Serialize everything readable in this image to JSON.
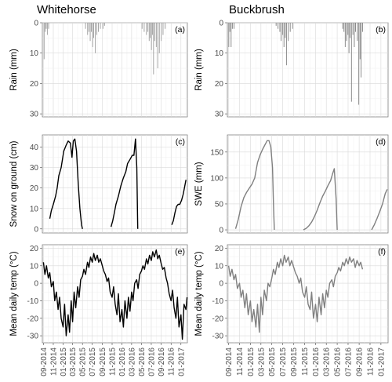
{
  "chart_data": {
    "columns": [
      "Whitehorse",
      "Buckbrush"
    ],
    "x_tick_labels": [
      "09-2014",
      "11-2014",
      "01-2015",
      "03-2015",
      "05-2015",
      "07-2015",
      "09-2015",
      "11-2015",
      "01-2016",
      "03-2016",
      "05-2016",
      "07-2016",
      "09-2016",
      "11-2016",
      "01-2017"
    ],
    "x_domain": [
      "2014-08-25",
      "2017-02-10"
    ],
    "panels": [
      {
        "id": "a",
        "column": "Whitehorse",
        "row": 0,
        "letter": "(a)",
        "type": "bar",
        "ylabel": "Rain (mm)",
        "y_reversed": true,
        "ylim": [
          0,
          31
        ],
        "yticks": [
          0,
          10,
          20,
          30
        ],
        "color": "#9a9a9a",
        "x": [
          "2014-09-05",
          "2014-09-12",
          "2014-09-18",
          "2014-09-25",
          "2014-10-03",
          "2015-05-20",
          "2015-06-02",
          "2015-06-10",
          "2015-06-18",
          "2015-06-25",
          "2015-07-03",
          "2015-07-10",
          "2015-07-20",
          "2015-07-28",
          "2015-08-08",
          "2015-08-20",
          "2015-09-05",
          "2015-09-15",
          "2016-05-05",
          "2016-05-18",
          "2016-06-01",
          "2016-06-10",
          "2016-06-18",
          "2016-06-25",
          "2016-07-02",
          "2016-07-08",
          "2016-07-15",
          "2016-07-22",
          "2016-08-01",
          "2016-08-10",
          "2016-08-20",
          "2016-09-01",
          "2016-09-12",
          "2016-09-25"
        ],
        "values": [
          12,
          3,
          2,
          4,
          2,
          2,
          4,
          3,
          6,
          3,
          8,
          5,
          10,
          4,
          3,
          2,
          2,
          1,
          2,
          3,
          4,
          3,
          6,
          5,
          9,
          4,
          17,
          6,
          8,
          15,
          10,
          6,
          4,
          2
        ]
      },
      {
        "id": "b",
        "column": "Buckbrush",
        "row": 0,
        "letter": "(b)",
        "type": "bar",
        "ylabel": "Rain (mm)",
        "y_reversed": true,
        "ylim": [
          0,
          31
        ],
        "yticks": [
          0,
          10,
          20,
          30
        ],
        "color": "#7f7f7f",
        "x": [
          "2014-09-02",
          "2014-09-08",
          "2014-09-15",
          "2014-09-22",
          "2014-10-01",
          "2015-05-25",
          "2015-06-05",
          "2015-06-15",
          "2015-06-22",
          "2015-07-01",
          "2015-07-08",
          "2015-07-15",
          "2015-07-22",
          "2015-08-01",
          "2015-08-12",
          "2015-08-25",
          "2016-06-01",
          "2016-06-08",
          "2016-06-15",
          "2016-06-22",
          "2016-06-30",
          "2016-07-06",
          "2016-07-12",
          "2016-07-20",
          "2016-07-28",
          "2016-08-05",
          "2016-08-12",
          "2016-08-22",
          "2016-08-30",
          "2016-09-06",
          "2016-09-12",
          "2016-09-20"
        ],
        "values": [
          8,
          3,
          8,
          2,
          2,
          1,
          2,
          3,
          6,
          4,
          8,
          5,
          14,
          6,
          3,
          2,
          2,
          3,
          8,
          6,
          4,
          10,
          5,
          26,
          4,
          8,
          3,
          6,
          27,
          12,
          18,
          3
        ]
      },
      {
        "id": "c",
        "column": "Whitehorse",
        "row": 1,
        "letter": "(c)",
        "type": "line",
        "ylabel": "Snow on ground (cm)",
        "ylim": [
          -2,
          46
        ],
        "yticks": [
          0,
          10,
          20,
          30,
          40
        ],
        "color": "#000000",
        "segments": [
          {
            "x": [
              "2014-10-10",
              "2014-10-20",
              "2014-11-01",
              "2014-11-15",
              "2014-11-25",
              "2014-12-05",
              "2014-12-20",
              "2015-01-05",
              "2015-01-20",
              "2015-02-01",
              "2015-02-15",
              "2015-02-25",
              "2015-03-05",
              "2015-03-15",
              "2015-03-25",
              "2015-04-05",
              "2015-04-15",
              "2015-04-25",
              "2015-05-01"
            ],
            "values": [
              5,
              9,
              12,
              16,
              20,
              26,
              30,
              38,
              41,
              43,
              42,
              35,
              43,
              44,
              38,
              22,
              10,
              2,
              0
            ]
          },
          {
            "x": [
              "2015-10-25",
              "2015-11-05",
              "2015-11-15",
              "2015-11-25",
              "2015-12-10",
              "2015-12-25",
              "2016-01-10",
              "2016-01-25",
              "2016-02-05",
              "2016-02-20",
              "2016-03-05",
              "2016-03-15",
              "2016-03-25",
              "2016-04-02",
              "2016-04-08"
            ],
            "values": [
              1,
              4,
              8,
              12,
              16,
              21,
              25,
              28,
              32,
              34,
              36,
              36,
              44,
              30,
              0
            ]
          },
          {
            "x": [
              "2016-11-05",
              "2016-11-15",
              "2016-11-25",
              "2016-12-05",
              "2016-12-15",
              "2016-12-25",
              "2017-01-05",
              "2017-01-15",
              "2017-01-25",
              "2017-02-01"
            ],
            "values": [
              2,
              4,
              8,
              11,
              12,
              12,
              14,
              17,
              21,
              24
            ]
          }
        ]
      },
      {
        "id": "d",
        "column": "Buckbrush",
        "row": 1,
        "letter": "(d)",
        "type": "line",
        "ylabel": "SWE (mm)",
        "ylim": [
          -6,
          183
        ],
        "yticks": [
          0,
          50,
          100,
          150
        ],
        "color": "#808080",
        "segments": [
          {
            "x": [
              "2014-10-10",
              "2014-10-25",
              "2014-11-10",
              "2014-11-25",
              "2014-12-10",
              "2014-12-25",
              "2015-01-10",
              "2015-01-25",
              "2015-02-10",
              "2015-02-25",
              "2015-03-10",
              "2015-03-25",
              "2015-04-05",
              "2015-04-15",
              "2015-04-25",
              "2015-05-05",
              "2015-05-10",
              "2015-05-15"
            ],
            "values": [
              2,
              20,
              45,
              62,
              72,
              80,
              88,
              100,
              130,
              145,
              155,
              165,
              172,
              172,
              160,
              120,
              50,
              0
            ]
          },
          {
            "x": [
              "2015-10-25",
              "2015-11-10",
              "2015-11-25",
              "2015-12-10",
              "2015-12-25",
              "2016-01-10",
              "2016-01-25",
              "2016-02-10",
              "2016-02-25",
              "2016-03-10",
              "2016-03-25",
              "2016-04-05",
              "2016-04-15",
              "2016-04-25",
              "2016-05-01"
            ],
            "values": [
              0,
              3,
              8,
              15,
              25,
              38,
              52,
              65,
              75,
              85,
              95,
              108,
              118,
              60,
              0
            ]
          },
          {
            "x": [
              "2016-11-10",
              "2016-11-25",
              "2016-12-10",
              "2016-12-25",
              "2017-01-10",
              "2017-01-25",
              "2017-02-05"
            ],
            "values": [
              0,
              10,
              22,
              35,
              50,
              70,
              78
            ]
          }
        ]
      },
      {
        "id": "e",
        "column": "Whitehorse",
        "row": 2,
        "letter": "(e)",
        "type": "line",
        "ylabel": "Mean daily temp (°C)",
        "ylim": [
          -34,
          22
        ],
        "yticks": [
          -30,
          -20,
          -10,
          0,
          10,
          20
        ],
        "color": "#000000",
        "segments": [
          {
            "x": [
              "2014-09-01",
              "2014-09-10",
              "2014-09-20",
              "2014-10-01",
              "2014-10-10",
              "2014-10-20",
              "2014-11-01",
              "2014-11-10",
              "2014-11-20",
              "2014-12-01",
              "2014-12-10",
              "2014-12-20",
              "2015-01-01",
              "2015-01-10",
              "2015-01-20",
              "2015-02-01",
              "2015-02-10",
              "2015-02-20",
              "2015-03-01",
              "2015-03-10",
              "2015-03-20",
              "2015-04-01",
              "2015-04-10",
              "2015-04-20",
              "2015-05-01",
              "2015-05-10",
              "2015-05-20",
              "2015-06-01",
              "2015-06-10",
              "2015-06-20",
              "2015-07-01",
              "2015-07-10",
              "2015-07-20",
              "2015-08-01",
              "2015-08-10",
              "2015-08-20",
              "2015-09-01",
              "2015-09-10",
              "2015-09-20",
              "2015-10-01",
              "2015-10-10",
              "2015-10-20",
              "2015-11-01",
              "2015-11-10",
              "2015-11-20",
              "2015-12-01",
              "2015-12-10",
              "2015-12-20",
              "2016-01-01",
              "2016-01-10",
              "2016-01-20",
              "2016-02-01",
              "2016-02-10",
              "2016-02-20",
              "2016-03-01",
              "2016-03-10",
              "2016-03-20",
              "2016-04-01",
              "2016-04-10",
              "2016-04-20",
              "2016-05-01",
              "2016-05-10",
              "2016-05-20",
              "2016-06-01",
              "2016-06-10",
              "2016-06-20",
              "2016-07-01",
              "2016-07-10",
              "2016-07-20",
              "2016-08-01",
              "2016-08-10",
              "2016-08-20",
              "2016-09-01",
              "2016-09-10",
              "2016-09-20",
              "2016-10-01",
              "2016-10-10",
              "2016-10-20",
              "2016-11-01",
              "2016-11-10",
              "2016-11-20",
              "2016-12-01",
              "2016-12-10",
              "2016-12-20",
              "2017-01-01",
              "2017-01-10",
              "2017-01-20",
              "2017-02-01",
              "2017-02-08"
            ],
            "values": [
              12,
              5,
              10,
              3,
              6,
              -2,
              1,
              -10,
              -5,
              -15,
              -8,
              -20,
              -25,
              -12,
              -30,
              -18,
              -28,
              -10,
              -22,
              -5,
              -14,
              -2,
              -8,
              2,
              4,
              8,
              5,
              12,
              9,
              15,
              12,
              17,
              13,
              16,
              12,
              14,
              10,
              7,
              5,
              1,
              3,
              -5,
              -8,
              -2,
              -12,
              -18,
              -6,
              -22,
              -15,
              -25,
              -10,
              -20,
              -8,
              -16,
              -5,
              -10,
              0,
              2,
              -3,
              5,
              7,
              10,
              8,
              14,
              11,
              16,
              13,
              18,
              15,
              19,
              14,
              16,
              11,
              8,
              9,
              3,
              0,
              -6,
              -10,
              -4,
              -14,
              -20,
              -8,
              -25,
              -18,
              -32,
              -12,
              -15,
              -8
            ]
          }
        ]
      },
      {
        "id": "f",
        "column": "Buckbrush",
        "row": 2,
        "letter": "(f)",
        "type": "line",
        "ylabel": "Mean daily temp (°C)",
        "ylim": [
          -34,
          22
        ],
        "yticks": [
          -30,
          -20,
          -10,
          0,
          10,
          20
        ],
        "color": "#808080",
        "segments": [
          {
            "x": [
              "2014-09-01",
              "2014-09-10",
              "2014-09-20",
              "2014-10-01",
              "2014-10-10",
              "2014-10-20",
              "2014-11-01",
              "2014-11-10",
              "2014-11-20",
              "2014-12-01",
              "2014-12-10",
              "2014-12-20",
              "2015-01-01",
              "2015-01-10",
              "2015-01-20",
              "2015-02-01",
              "2015-02-10",
              "2015-02-20",
              "2015-03-01",
              "2015-03-10",
              "2015-03-20",
              "2015-04-01",
              "2015-04-10",
              "2015-04-20",
              "2015-05-01",
              "2015-05-10",
              "2015-05-20",
              "2015-06-01",
              "2015-06-10",
              "2015-06-20",
              "2015-07-01",
              "2015-07-10",
              "2015-07-20",
              "2015-08-01",
              "2015-08-10",
              "2015-08-20",
              "2015-09-01",
              "2015-09-10",
              "2015-09-20",
              "2015-10-01",
              "2015-10-10",
              "2015-10-20",
              "2015-11-01",
              "2015-11-10",
              "2015-11-20",
              "2015-12-01",
              "2015-12-10",
              "2015-12-20",
              "2016-01-01",
              "2016-01-10",
              "2016-01-20",
              "2016-02-01",
              "2016-02-10",
              "2016-02-20",
              "2016-03-01",
              "2016-03-10",
              "2016-03-20",
              "2016-04-01",
              "2016-04-10",
              "2016-04-20",
              "2016-05-01",
              "2016-05-10",
              "2016-05-20",
              "2016-06-01",
              "2016-06-10",
              "2016-06-20",
              "2016-07-01",
              "2016-07-10",
              "2016-07-20",
              "2016-08-01",
              "2016-08-10",
              "2016-08-20",
              "2016-09-01",
              "2016-09-10",
              "2016-09-20"
            ],
            "values": [
              10,
              4,
              8,
              2,
              5,
              -3,
              0,
              -8,
              -4,
              -14,
              -6,
              -18,
              -10,
              -22,
              -15,
              -25,
              -12,
              -28,
              -8,
              -18,
              -4,
              -10,
              0,
              -2,
              3,
              8,
              5,
              12,
              9,
              14,
              10,
              16,
              12,
              15,
              10,
              13,
              9,
              6,
              4,
              0,
              3,
              -5,
              -8,
              -2,
              -12,
              -15,
              -5,
              -20,
              -12,
              -22,
              -8,
              -18,
              -6,
              -14,
              -4,
              -8,
              0,
              2,
              -2,
              4,
              6,
              9,
              7,
              12,
              10,
              14,
              11,
              15,
              12,
              14,
              9,
              13,
              10,
              12,
              8
            ]
          }
        ]
      }
    ]
  }
}
